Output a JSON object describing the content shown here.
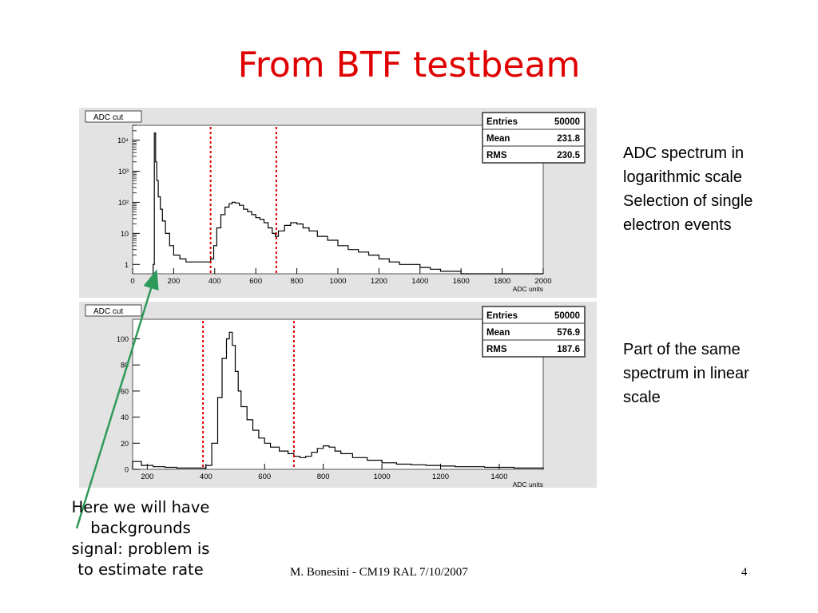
{
  "slide": {
    "title": "From BTF testbeam",
    "notes": {
      "log": [
        "ADC spectrum in",
        "logarithmic scale",
        "Selection of single",
        "electron events"
      ],
      "linear": [
        "Part of the same",
        "spectrum  in linear",
        "scale"
      ]
    },
    "callout": [
      "Here we will have",
      "backgrounds",
      "signal: problem is",
      "to estimate rate"
    ],
    "footer": {
      "author": "M. Bonesini - CM19 RAL 7/10/2007",
      "page": "4"
    },
    "colors": {
      "title": "#e00000",
      "cut_line": "#e00000",
      "arrow": "#2e9a5a",
      "panel_bg": "#e3e3e3",
      "histogram": "#000000"
    }
  },
  "chart_data": [
    {
      "type": "histogram",
      "title": "ADC cut",
      "xlabel": "ADC units",
      "xlim": [
        0,
        2000
      ],
      "xticks": [
        0,
        200,
        400,
        600,
        800,
        1000,
        1200,
        1400,
        1600,
        1800,
        2000
      ],
      "xtick_labels": [
        "0",
        "200",
        "400",
        "600",
        "800",
        "1000",
        "1200",
        "1400",
        "1600",
        "1800",
        "2000"
      ],
      "yscale": "log",
      "ylim": [
        0.5,
        30000
      ],
      "yticks": [
        1,
        10,
        100,
        1000,
        10000
      ],
      "ytick_labels": [
        "1",
        "10",
        "10²",
        "10³",
        "10⁴"
      ],
      "stats": [
        {
          "label": "Entries",
          "value": "50000"
        },
        {
          "label": "Mean",
          "value": "231.8"
        },
        {
          "label": "RMS",
          "value": "230.5"
        }
      ],
      "cut_lines": [
        380,
        700
      ],
      "bins_x": [
        100,
        106,
        112,
        118,
        125,
        135,
        145,
        160,
        180,
        200,
        230,
        260,
        300,
        340,
        380,
        395,
        410,
        430,
        450,
        470,
        485,
        500,
        520,
        540,
        560,
        580,
        600,
        620,
        640,
        660,
        680,
        695,
        710,
        740,
        770,
        800,
        830,
        860,
        900,
        950,
        1000,
        1050,
        1100,
        1150,
        1200,
        1250,
        1300,
        1350,
        1400,
        1450,
        1500,
        1550,
        1600,
        1650,
        1700,
        1800,
        1900,
        2000
      ],
      "bins_y": [
        1,
        17000,
        2000,
        500,
        150,
        60,
        25,
        10,
        4,
        2,
        1.5,
        1.2,
        1.2,
        1.2,
        1.5,
        4,
        15,
        40,
        70,
        90,
        100,
        95,
        80,
        60,
        50,
        40,
        32,
        28,
        22,
        15,
        10,
        8,
        12,
        18,
        22,
        20,
        15,
        12,
        8,
        6,
        4,
        3,
        2.5,
        2,
        1.5,
        1.2,
        1,
        1,
        0.8,
        0.7,
        0.6,
        0.6,
        0.5,
        0.5,
        0.5,
        0.5,
        0.5,
        0.5
      ]
    },
    {
      "type": "histogram",
      "title": "ADC cut",
      "xlabel": "ADC units",
      "xlim": [
        150,
        1550
      ],
      "xticks": [
        200,
        400,
        600,
        800,
        1000,
        1200,
        1400
      ],
      "xtick_labels": [
        "200",
        "400",
        "600",
        "800",
        "1000",
        "1200",
        "1400"
      ],
      "yscale": "linear",
      "ylim": [
        0,
        115
      ],
      "yticks": [
        0,
        20,
        40,
        60,
        80,
        100
      ],
      "ytick_labels": [
        "0",
        "20",
        "40",
        "60",
        "80",
        "100"
      ],
      "stats": [
        {
          "label": "Entries",
          "value": "50000"
        },
        {
          "label": "Mean",
          "value": "576.9"
        },
        {
          "label": "RMS",
          "value": "187.6"
        }
      ],
      "cut_lines": [
        390,
        700
      ],
      "bins_x": [
        150,
        180,
        220,
        260,
        300,
        340,
        380,
        400,
        420,
        440,
        455,
        470,
        480,
        490,
        500,
        510,
        520,
        540,
        560,
        580,
        600,
        620,
        650,
        680,
        700,
        720,
        740,
        760,
        780,
        800,
        820,
        840,
        860,
        900,
        950,
        1000,
        1050,
        1100,
        1150,
        1200,
        1250,
        1300,
        1350,
        1400,
        1450,
        1500,
        1550
      ],
      "bins_y": [
        6,
        3,
        2,
        1.5,
        1,
        1,
        1,
        3,
        20,
        55,
        85,
        100,
        105,
        95,
        75,
        60,
        48,
        38,
        30,
        24,
        20,
        17,
        14,
        12,
        10,
        9,
        10,
        13,
        16,
        18,
        17,
        14,
        12,
        9,
        7,
        5,
        4,
        3.5,
        3,
        2.5,
        2,
        2,
        1.5,
        1.5,
        1,
        1,
        0.5
      ]
    }
  ]
}
